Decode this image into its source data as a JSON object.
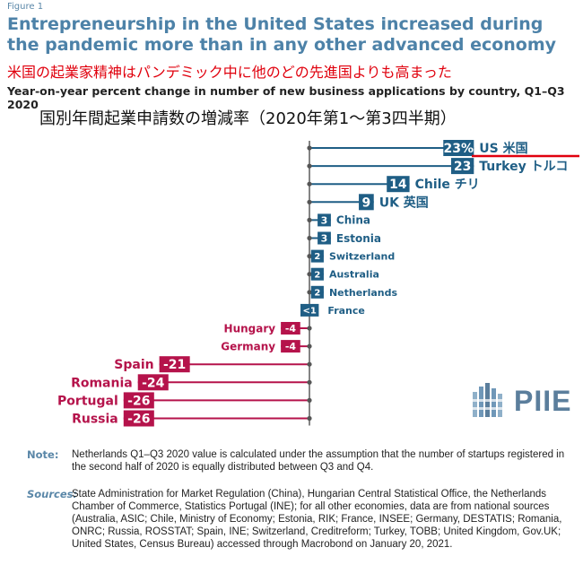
{
  "header": {
    "figure_label": "Figure 1",
    "title": "Entrepreneurship in the United States increased during the pandemic more than in any other advanced economy",
    "title_ja": "米国の起業家精神はパンデミック中に他のどの先進国よりも高まった",
    "subtitle": "Year-on-year percent change in number of new business applications by country, Q1–Q3 2020",
    "subtitle_ja": "国別年間起業申請数の増減率（2020年第1～第3四半期）"
  },
  "colors": {
    "positive": "#1f5e85",
    "negative": "#b5134b",
    "highlight_line": "#e0000d",
    "axis": "#333333"
  },
  "chart_data": {
    "type": "bar",
    "orientation": "horizontal",
    "categories": [
      "US 米国",
      "Turkey トルコ",
      "Chile チリ",
      "UK 英国",
      "China",
      "Estonia",
      "Switzerland",
      "Australia",
      "Netherlands",
      "France",
      "Hungary",
      "Germany",
      "Spain",
      "Romania",
      "Portugal",
      "Russia"
    ],
    "values": [
      23,
      23,
      14,
      9,
      3,
      3,
      2,
      2,
      2,
      0.5,
      -4,
      -4,
      -21,
      -24,
      -26,
      -26
    ],
    "value_labels": [
      "23%",
      "23",
      "14",
      "9",
      "3",
      "3",
      "2",
      "2",
      "2",
      "<1",
      "-4",
      "-4",
      "-21",
      "-24",
      "-26",
      "-26"
    ],
    "xlim": [
      -26,
      23
    ],
    "grid": false,
    "legend": "none"
  },
  "footer": {
    "note_label": "Note:",
    "note": "Netherlands Q1–Q3 2020 value is calculated under the assumption that the number of startups registered in the second half of 2020 is equally distributed between Q3 and Q4.",
    "sources_label": "Sources:",
    "sources": "State Administration for Market Regulation (China), Hungarian Central Statistical Office, the Netherlands Chamber of Commerce, Statistics Portugal (INE); for all other economies, data are from national sources (Australia, ASIC; Chile, Ministry of Economy; Estonia, RIK; France, INSEE; Germany, DESTATIS; Romania, ONRC; Russia, ROSSTAT; Spain, INE; Switzerland, Creditreform; Turkey, TOBB; United Kingdom, Gov.UK; United States, Census Bureau) accessed through Macrobond on January 20, 2021."
  },
  "logo": {
    "text": "PIIE"
  }
}
